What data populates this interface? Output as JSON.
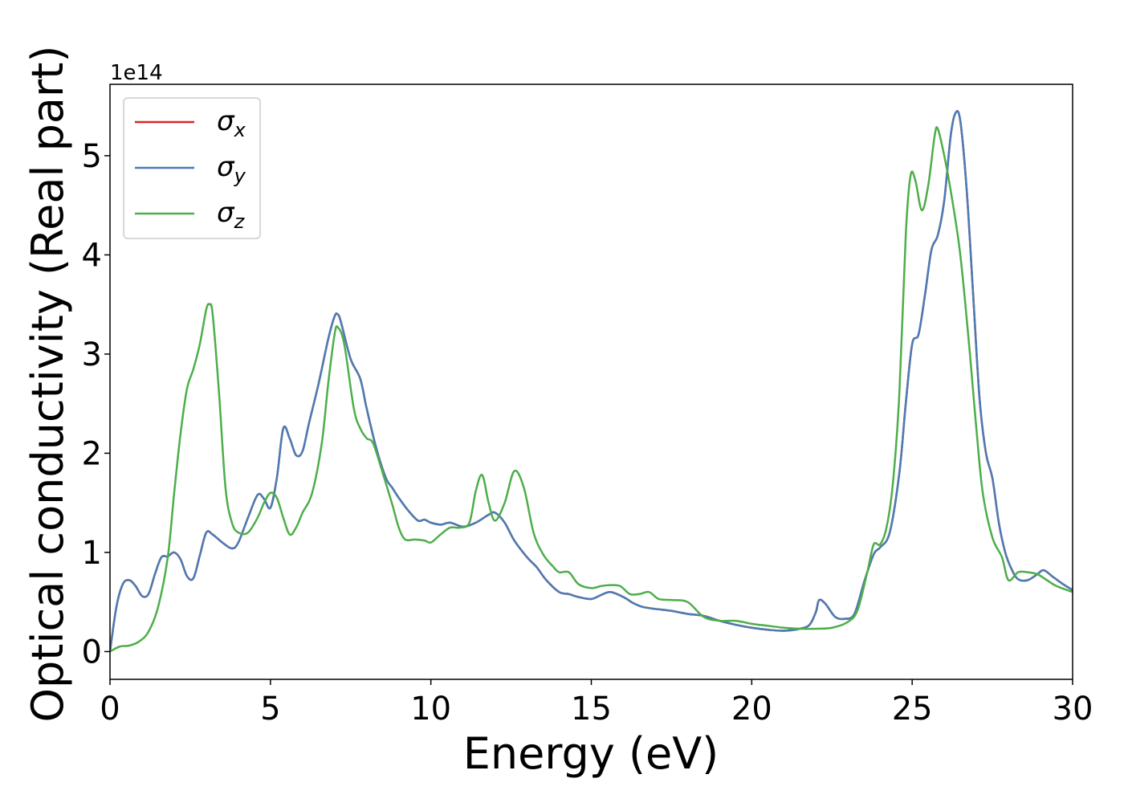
{
  "chart_data": {
    "type": "line",
    "xlabel": "Energy (eV)",
    "ylabel": "Optical conductivity (Real part)",
    "y_offset_label": "1e14",
    "xlim": [
      0,
      30
    ],
    "ylim": [
      -0.28,
      5.72
    ],
    "x_ticks": [
      0,
      5,
      10,
      15,
      20,
      25,
      30
    ],
    "y_ticks": [
      0,
      1,
      2,
      3,
      4,
      5
    ],
    "grid": false,
    "legend_position": "top-left",
    "colors": {
      "x": "#d62728",
      "y": "#4a7cb4",
      "z": "#4dae4a"
    },
    "series": [
      {
        "name": "σx",
        "base": "σ",
        "sub": "x",
        "key": "x",
        "x": [
          0,
          0.2,
          0.4,
          0.6,
          0.8,
          1.0,
          1.2,
          1.4,
          1.6,
          1.8,
          2.0,
          2.2,
          2.4,
          2.6,
          2.8,
          3.0,
          3.2,
          3.5,
          3.8,
          4.0,
          4.3,
          4.6,
          4.8,
          5.0,
          5.2,
          5.4,
          5.6,
          5.8,
          6.0,
          6.2,
          6.5,
          6.8,
          7.0,
          7.1,
          7.2,
          7.5,
          7.8,
          8.0,
          8.3,
          8.6,
          8.8,
          9.0,
          9.3,
          9.6,
          9.8,
          10.0,
          10.3,
          10.6,
          11.0,
          11.4,
          11.8,
          12.0,
          12.3,
          12.6,
          13.0,
          13.3,
          13.6,
          14.0,
          14.3,
          14.6,
          15.0,
          15.3,
          15.6,
          16.0,
          16.3,
          16.6,
          17.0,
          17.5,
          18.0,
          18.5,
          19.0,
          19.5,
          20.0,
          20.5,
          21.0,
          21.5,
          21.8,
          22.0,
          22.1,
          22.3,
          22.6,
          22.9,
          23.2,
          23.5,
          23.8,
          24.0,
          24.3,
          24.6,
          24.8,
          25.0,
          25.2,
          25.4,
          25.6,
          25.8,
          26.0,
          26.2,
          26.35,
          26.5,
          26.7,
          26.9,
          27.1,
          27.3,
          27.5,
          27.7,
          27.9,
          28.1,
          28.3,
          28.6,
          28.9,
          29.1,
          29.4,
          29.7,
          30.0
        ],
        "y": [
          0.0,
          0.45,
          0.68,
          0.72,
          0.66,
          0.56,
          0.58,
          0.78,
          0.95,
          0.96,
          1.0,
          0.93,
          0.76,
          0.74,
          0.97,
          1.2,
          1.18,
          1.1,
          1.04,
          1.1,
          1.35,
          1.58,
          1.54,
          1.45,
          1.75,
          2.25,
          2.15,
          1.98,
          2.02,
          2.3,
          2.7,
          3.15,
          3.38,
          3.4,
          3.32,
          2.95,
          2.75,
          2.45,
          2.05,
          1.75,
          1.65,
          1.55,
          1.42,
          1.32,
          1.33,
          1.3,
          1.28,
          1.3,
          1.26,
          1.3,
          1.38,
          1.4,
          1.3,
          1.12,
          0.95,
          0.85,
          0.72,
          0.6,
          0.58,
          0.55,
          0.53,
          0.57,
          0.6,
          0.55,
          0.49,
          0.45,
          0.43,
          0.41,
          0.38,
          0.36,
          0.31,
          0.27,
          0.24,
          0.22,
          0.21,
          0.23,
          0.27,
          0.4,
          0.52,
          0.48,
          0.35,
          0.33,
          0.38,
          0.7,
          0.98,
          1.05,
          1.2,
          1.8,
          2.5,
          3.1,
          3.2,
          3.6,
          4.05,
          4.2,
          4.55,
          5.2,
          5.43,
          5.35,
          4.65,
          3.6,
          2.55,
          2.0,
          1.75,
          1.3,
          1.0,
          0.83,
          0.73,
          0.72,
          0.78,
          0.82,
          0.75,
          0.68,
          0.62
        ]
      },
      {
        "name": "σy",
        "base": "σ",
        "sub": "y",
        "key": "y",
        "x": [
          0,
          0.2,
          0.4,
          0.6,
          0.8,
          1.0,
          1.2,
          1.4,
          1.6,
          1.8,
          2.0,
          2.2,
          2.4,
          2.6,
          2.8,
          3.0,
          3.2,
          3.5,
          3.8,
          4.0,
          4.3,
          4.6,
          4.8,
          5.0,
          5.2,
          5.4,
          5.6,
          5.8,
          6.0,
          6.2,
          6.5,
          6.8,
          7.0,
          7.1,
          7.2,
          7.5,
          7.8,
          8.0,
          8.3,
          8.6,
          8.8,
          9.0,
          9.3,
          9.6,
          9.8,
          10.0,
          10.3,
          10.6,
          11.0,
          11.4,
          11.8,
          12.0,
          12.3,
          12.6,
          13.0,
          13.3,
          13.6,
          14.0,
          14.3,
          14.6,
          15.0,
          15.3,
          15.6,
          16.0,
          16.3,
          16.6,
          17.0,
          17.5,
          18.0,
          18.5,
          19.0,
          19.5,
          20.0,
          20.5,
          21.0,
          21.5,
          21.8,
          22.0,
          22.1,
          22.3,
          22.6,
          22.9,
          23.2,
          23.5,
          23.8,
          24.0,
          24.3,
          24.6,
          24.8,
          25.0,
          25.2,
          25.4,
          25.6,
          25.8,
          26.0,
          26.2,
          26.35,
          26.5,
          26.7,
          26.9,
          27.1,
          27.3,
          27.5,
          27.7,
          27.9,
          28.1,
          28.3,
          28.6,
          28.9,
          29.1,
          29.4,
          29.7,
          30.0
        ],
        "y": [
          0.0,
          0.45,
          0.68,
          0.72,
          0.66,
          0.56,
          0.58,
          0.78,
          0.95,
          0.96,
          1.0,
          0.93,
          0.76,
          0.74,
          0.97,
          1.2,
          1.18,
          1.1,
          1.04,
          1.1,
          1.35,
          1.58,
          1.54,
          1.45,
          1.75,
          2.25,
          2.15,
          1.98,
          2.02,
          2.3,
          2.7,
          3.15,
          3.38,
          3.4,
          3.32,
          2.95,
          2.75,
          2.45,
          2.05,
          1.75,
          1.65,
          1.55,
          1.42,
          1.32,
          1.33,
          1.3,
          1.28,
          1.3,
          1.26,
          1.3,
          1.38,
          1.4,
          1.3,
          1.12,
          0.95,
          0.85,
          0.72,
          0.6,
          0.58,
          0.55,
          0.53,
          0.57,
          0.6,
          0.55,
          0.49,
          0.45,
          0.43,
          0.41,
          0.38,
          0.36,
          0.31,
          0.27,
          0.24,
          0.22,
          0.21,
          0.23,
          0.27,
          0.4,
          0.52,
          0.48,
          0.35,
          0.33,
          0.38,
          0.7,
          0.98,
          1.05,
          1.2,
          1.8,
          2.5,
          3.1,
          3.2,
          3.6,
          4.05,
          4.2,
          4.55,
          5.2,
          5.43,
          5.35,
          4.65,
          3.6,
          2.55,
          2.0,
          1.75,
          1.3,
          1.0,
          0.83,
          0.73,
          0.72,
          0.78,
          0.82,
          0.75,
          0.68,
          0.62
        ]
      },
      {
        "name": "σz",
        "base": "σ",
        "sub": "z",
        "key": "z",
        "x": [
          0,
          0.3,
          0.6,
          0.9,
          1.2,
          1.5,
          1.8,
          2.0,
          2.2,
          2.4,
          2.6,
          2.8,
          3.0,
          3.1,
          3.2,
          3.4,
          3.6,
          3.8,
          4.0,
          4.3,
          4.6,
          4.8,
          5.0,
          5.2,
          5.4,
          5.6,
          5.8,
          6.0,
          6.3,
          6.6,
          6.8,
          7.0,
          7.1,
          7.3,
          7.6,
          7.8,
          8.0,
          8.2,
          8.5,
          8.8,
          9.0,
          9.2,
          9.5,
          9.8,
          10.0,
          10.3,
          10.6,
          10.9,
          11.2,
          11.4,
          11.6,
          11.8,
          12.0,
          12.3,
          12.6,
          12.9,
          13.2,
          13.5,
          13.8,
          14.0,
          14.3,
          14.6,
          15.0,
          15.3,
          15.6,
          15.9,
          16.2,
          16.5,
          16.8,
          17.1,
          17.5,
          18.0,
          18.5,
          19.0,
          19.5,
          20.0,
          20.5,
          21.0,
          21.5,
          22.0,
          22.5,
          23.0,
          23.3,
          23.6,
          23.8,
          24.0,
          24.2,
          24.4,
          24.6,
          24.8,
          24.95,
          25.1,
          25.3,
          25.5,
          25.7,
          25.8,
          26.0,
          26.2,
          26.5,
          26.8,
          27.0,
          27.2,
          27.5,
          27.8,
          28.0,
          28.3,
          28.6,
          28.9,
          29.2,
          29.5,
          30.0
        ],
        "y": [
          0.0,
          0.05,
          0.06,
          0.1,
          0.2,
          0.45,
          0.95,
          1.6,
          2.2,
          2.65,
          2.85,
          3.1,
          3.45,
          3.5,
          3.4,
          2.6,
          1.65,
          1.3,
          1.2,
          1.2,
          1.35,
          1.5,
          1.6,
          1.55,
          1.35,
          1.18,
          1.25,
          1.4,
          1.6,
          2.1,
          2.7,
          3.2,
          3.27,
          3.1,
          2.45,
          2.25,
          2.15,
          2.1,
          1.8,
          1.48,
          1.25,
          1.13,
          1.13,
          1.12,
          1.1,
          1.18,
          1.25,
          1.25,
          1.3,
          1.62,
          1.78,
          1.5,
          1.32,
          1.5,
          1.82,
          1.65,
          1.2,
          0.98,
          0.86,
          0.8,
          0.8,
          0.68,
          0.64,
          0.66,
          0.67,
          0.66,
          0.58,
          0.58,
          0.6,
          0.53,
          0.52,
          0.5,
          0.35,
          0.31,
          0.31,
          0.28,
          0.26,
          0.24,
          0.23,
          0.23,
          0.24,
          0.3,
          0.42,
          0.8,
          1.08,
          1.08,
          1.25,
          1.7,
          2.6,
          4.2,
          4.8,
          4.75,
          4.45,
          4.7,
          5.2,
          5.27,
          5.0,
          4.65,
          4.0,
          3.0,
          2.25,
          1.6,
          1.15,
          0.95,
          0.72,
          0.8,
          0.8,
          0.78,
          0.72,
          0.66,
          0.6
        ]
      }
    ]
  }
}
